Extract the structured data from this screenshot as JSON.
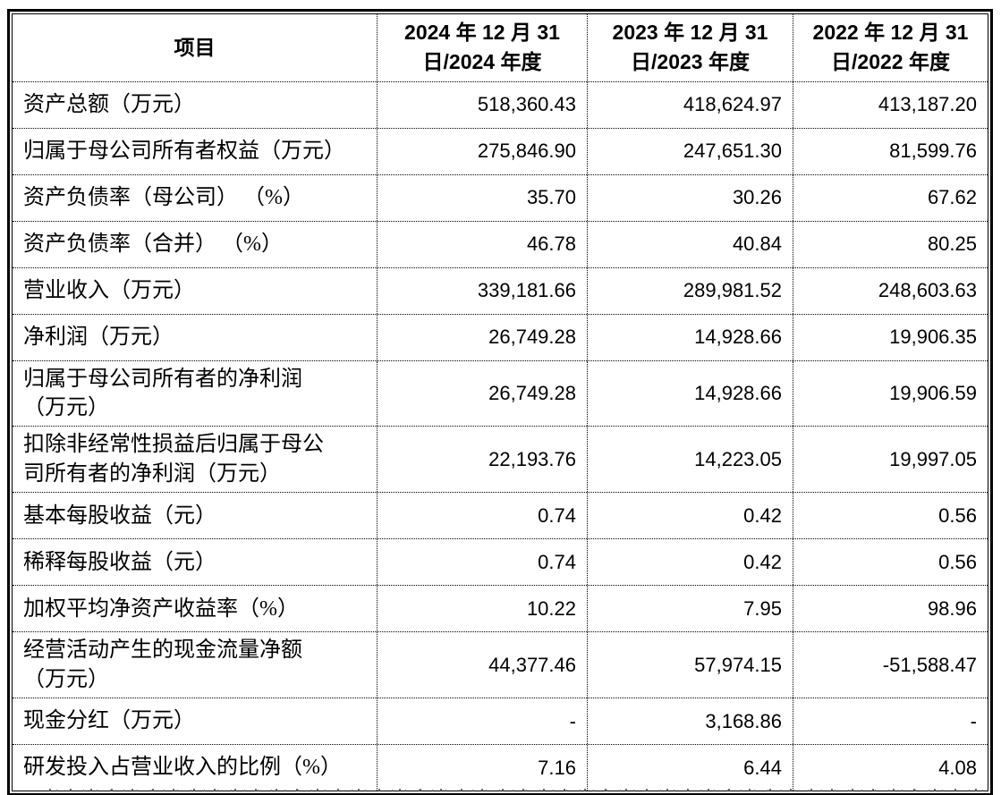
{
  "table": {
    "header": {
      "item": "项目",
      "col_2024": "2024 年 12 月 31\n日/2024 年度",
      "col_2023": "2023 年 12 月 31\n日/2023 年度",
      "col_2022": "2022 年 12 月 31\n日/2022 年度"
    },
    "rows": [
      {
        "label": "资产总额（万元）",
        "v2024": "518,360.43",
        "v2023": "418,624.97",
        "v2022": "413,187.20"
      },
      {
        "label": "归属于母公司所有者权益（万元）",
        "v2024": "275,846.90",
        "v2023": "247,651.30",
        "v2022": "81,599.76"
      },
      {
        "label": "资产负债率（母公司） （%）",
        "v2024": "35.70",
        "v2023": "30.26",
        "v2022": "67.62"
      },
      {
        "label": "资产负债率（合并） （%）",
        "v2024": "46.78",
        "v2023": "40.84",
        "v2022": "80.25"
      },
      {
        "label": "营业收入（万元）",
        "v2024": "339,181.66",
        "v2023": "289,981.52",
        "v2022": "248,603.63"
      },
      {
        "label": "净利润（万元）",
        "v2024": "26,749.28",
        "v2023": "14,928.66",
        "v2022": "19,906.35"
      },
      {
        "label": "归属于母公司所有者的净利润\n（万元）",
        "v2024": "26,749.28",
        "v2023": "14,928.66",
        "v2022": "19,906.59"
      },
      {
        "label": "扣除非经常性损益后归属于母公\n司所有者的净利润（万元）",
        "v2024": "22,193.76",
        "v2023": "14,223.05",
        "v2022": "19,997.05"
      },
      {
        "label": "基本每股收益（元）",
        "v2024": "0.74",
        "v2023": "0.42",
        "v2022": "0.56"
      },
      {
        "label": "稀释每股收益（元）",
        "v2024": "0.74",
        "v2023": "0.42",
        "v2022": "0.56"
      },
      {
        "label": "加权平均净资产收益率（%）",
        "v2024": "10.22",
        "v2023": "7.95",
        "v2022": "98.96"
      },
      {
        "label": "经营活动产生的现金流量净额\n（万元）",
        "v2024": "44,377.46",
        "v2023": "57,974.15",
        "v2022": "-51,588.47"
      },
      {
        "label": "现金分红（万元）",
        "v2024": "-",
        "v2023": "3,168.86",
        "v2022": "-"
      },
      {
        "label": "研发投入占营业收入的比例（%）",
        "v2024": "7.16",
        "v2023": "6.44",
        "v2022": "4.08"
      }
    ]
  }
}
